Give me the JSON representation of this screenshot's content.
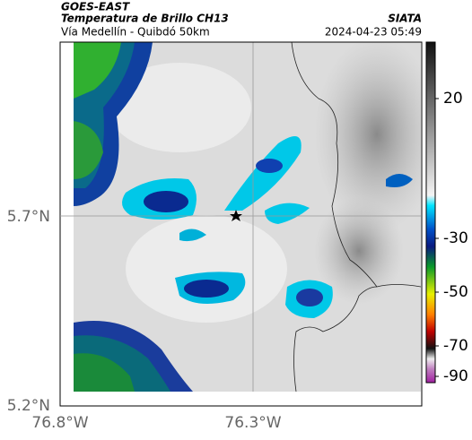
{
  "header": {
    "source": "GOES-EAST",
    "title": "Temperatura de Brillo CH13",
    "subtitle": "Vía Medellín - Quibdó 50km",
    "credit": "SIATA",
    "timestamp": "2024-04-23 05:49"
  },
  "axes": {
    "lat_labels": [
      "5.7°N",
      "5.2°N"
    ],
    "lon_labels": [
      "76.8°W",
      "76.3°W"
    ]
  },
  "colorbar": {
    "tick_labels": [
      "20",
      "-30",
      "-50",
      "-70",
      "-90"
    ]
  }
}
